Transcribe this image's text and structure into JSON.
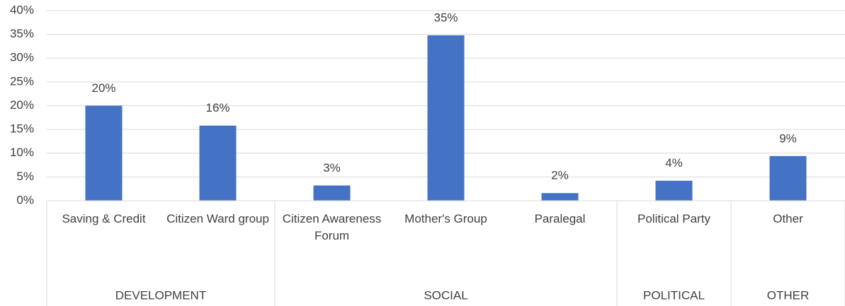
{
  "chart_data": {
    "type": "bar",
    "color": "#4472c4",
    "grid": true,
    "groups": [
      {
        "name": "DEVELOPMENT",
        "categories": [
          "Saving & Credit",
          "Citizen Ward group"
        ]
      },
      {
        "name": "SOCIAL",
        "categories": [
          "Citizen Awareness Forum",
          "Mother's Group",
          "Paralegal"
        ]
      },
      {
        "name": "POLITICAL",
        "categories": [
          "Political Party"
        ]
      },
      {
        "name": "OTHER",
        "categories": [
          "Other"
        ]
      }
    ],
    "values": [
      20,
      15.8,
      3.2,
      34.8,
      1.6,
      4.2,
      9.4
    ],
    "value_labels": [
      "20%",
      "16%",
      "3%",
      "35%",
      "2%",
      "4%",
      "9%"
    ],
    "ylim": [
      0,
      40
    ],
    "yticks": [
      {
        "value": 0,
        "label": "0%"
      },
      {
        "value": 5,
        "label": "5%"
      },
      {
        "value": 10,
        "label": "10%"
      },
      {
        "value": 15,
        "label": "15%"
      },
      {
        "value": 20,
        "label": "20%"
      },
      {
        "value": 25,
        "label": "25%"
      },
      {
        "value": 30,
        "label": "30%"
      },
      {
        "value": 35,
        "label": "35%"
      },
      {
        "value": 40,
        "label": "40%"
      }
    ]
  }
}
